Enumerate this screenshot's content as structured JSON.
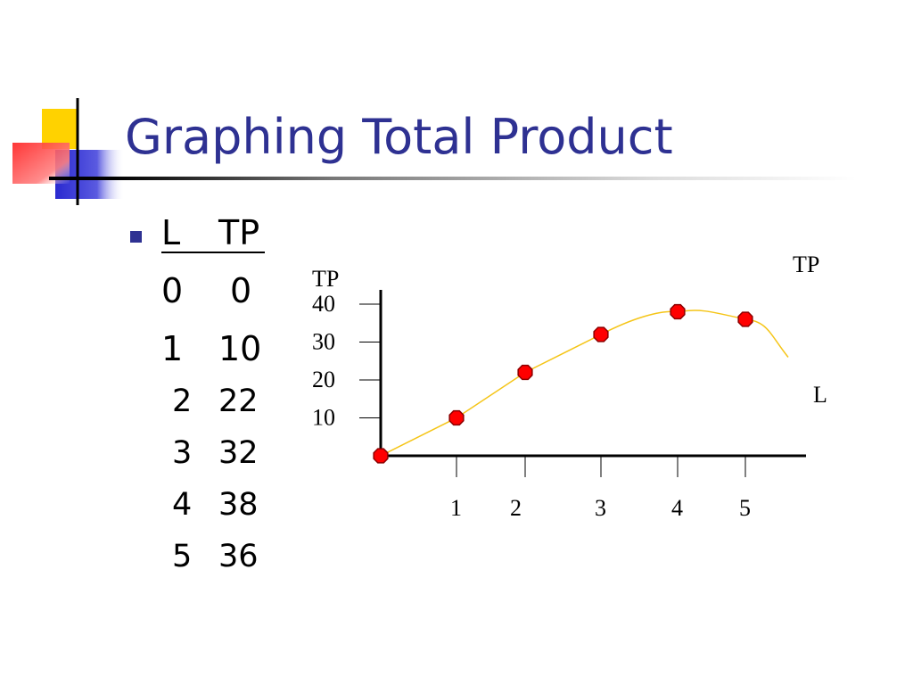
{
  "slide": {
    "title": "Graphing Total Product",
    "colors": {
      "title": "#2E3192",
      "bullet": "#2E3192",
      "curve": "#F5C518",
      "marker_fill": "#FF0000",
      "marker_stroke": "#8B0000",
      "logo_yellow": "#FFD200",
      "logo_blue": "#3232C8",
      "logo_red": "#FF3B3B"
    }
  },
  "table": {
    "headers": [
      "L",
      "TP"
    ],
    "rows": [
      [
        "0",
        "0"
      ],
      [
        "1",
        "10"
      ],
      [
        "2",
        "22"
      ],
      [
        "3",
        "32"
      ],
      [
        "4",
        "38"
      ],
      [
        "5",
        "36"
      ]
    ]
  },
  "chart_data": {
    "type": "line",
    "title": "",
    "ylabel": "TP",
    "xlabel": "L",
    "curve_label": "TP",
    "x": [
      0,
      1,
      2,
      3,
      4,
      5
    ],
    "y": [
      0,
      10,
      22,
      32,
      38,
      36
    ],
    "curve_extension": [
      [
        4.4,
        38
      ],
      [
        5.6,
        26
      ]
    ],
    "yticks": [
      10,
      20,
      30,
      40
    ],
    "xticks": [
      1,
      2,
      3,
      4,
      5
    ],
    "ylim": [
      0,
      40
    ],
    "xlim": [
      0,
      5.6
    ],
    "grid": false,
    "legend": "none"
  }
}
